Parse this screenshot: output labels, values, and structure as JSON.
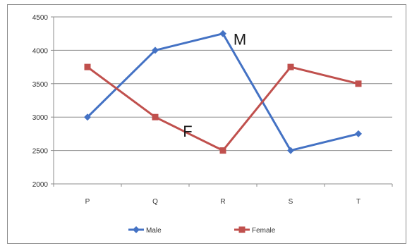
{
  "chart_data": {
    "type": "line",
    "categories": [
      "P",
      "Q",
      "R",
      "S",
      "T"
    ],
    "series": [
      {
        "name": "Male",
        "values": [
          3000,
          4000,
          4250,
          2500,
          2750
        ],
        "color": "#4472c4",
        "marker": "diamond"
      },
      {
        "name": "Female",
        "values": [
          3750,
          3000,
          2500,
          3750,
          3500
        ],
        "color": "#c0504d",
        "marker": "square"
      }
    ],
    "ylim": [
      2000,
      4500
    ],
    "yticks": [
      2000,
      2500,
      3000,
      3500,
      4000,
      4500
    ],
    "grid": true,
    "legend_position": "bottom",
    "annotations": [
      {
        "text": "M",
        "series": "Male",
        "near_category": "R"
      },
      {
        "text": "F",
        "series": "Female",
        "near_category": "Q"
      }
    ]
  }
}
